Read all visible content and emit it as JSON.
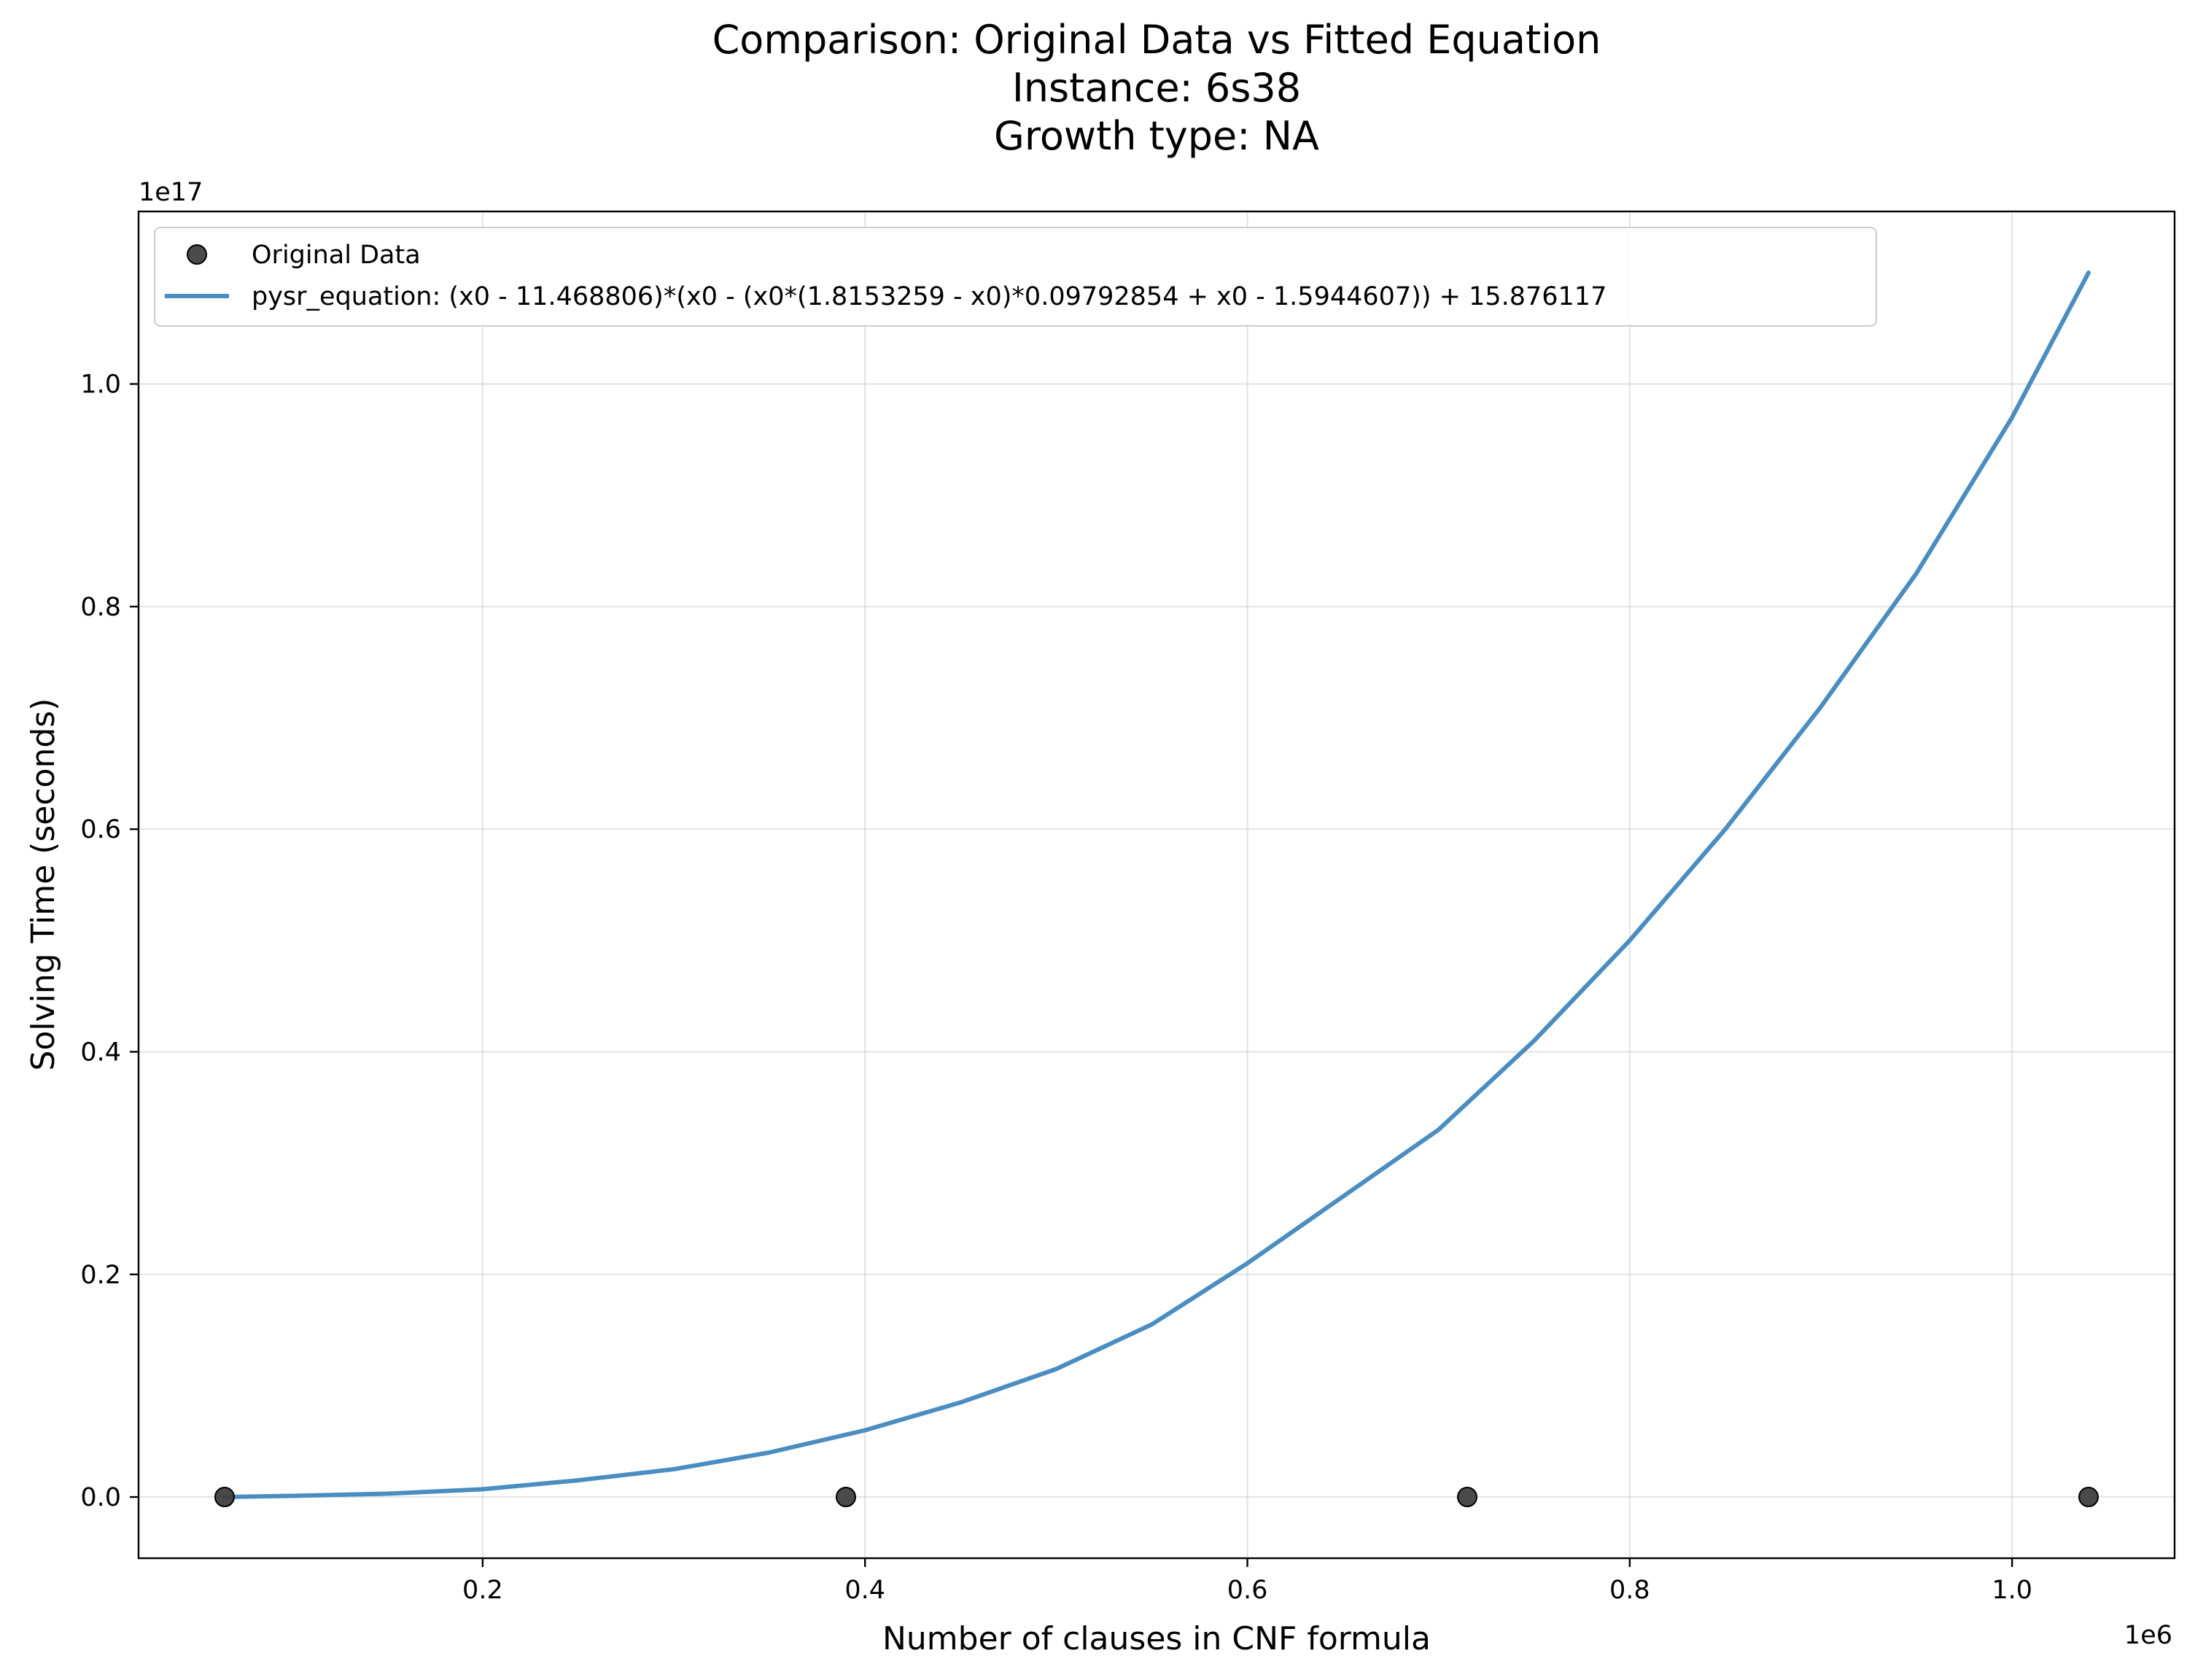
{
  "chart_data": {
    "type": "scatter",
    "title_lines": [
      "Comparison: Original Data vs Fitted Equation",
      "Instance: 6s38",
      "Growth type: NA"
    ],
    "xlabel": "Number of clauses in CNF formula",
    "ylabel": "Solving Time (seconds)",
    "x_scale_label": "1e6",
    "y_scale_label": "1e17",
    "xlim": [
      0.02,
      1.085
    ],
    "ylim": [
      -0.055,
      1.155
    ],
    "x_ticks": [
      0.2,
      0.4,
      0.6,
      0.8,
      1.0
    ],
    "x_tick_labels": [
      "0.2",
      "0.4",
      "0.6",
      "0.8",
      "1.0"
    ],
    "y_ticks": [
      0.0,
      0.2,
      0.4,
      0.6,
      0.8,
      1.0
    ],
    "y_tick_labels": [
      "0.0",
      "0.2",
      "0.4",
      "0.6",
      "0.8",
      "1.0"
    ],
    "grid": true,
    "legend_position": "top-left",
    "series": [
      {
        "name": "Original Data",
        "kind": "scatter",
        "color": "#404040",
        "x": [
          0.065,
          0.39,
          0.715,
          1.04
        ],
        "y": [
          0.0,
          0.0,
          0.0,
          0.0
        ]
      },
      {
        "name": "pysr_equation: (x0 - 11.468806)*(x0 - (x0*(1.8153259 - x0)*0.09792854 + x0 - 1.5944607)) + 15.876117",
        "kind": "line",
        "color": "#4a8dc0",
        "x": [
          0.065,
          0.1,
          0.15,
          0.2,
          0.25,
          0.3,
          0.35,
          0.4,
          0.45,
          0.5,
          0.55,
          0.6,
          0.65,
          0.7,
          0.75,
          0.8,
          0.85,
          0.9,
          0.95,
          1.0,
          1.04
        ],
        "y": [
          0.0,
          0.001,
          0.003,
          0.007,
          0.015,
          0.025,
          0.04,
          0.06,
          0.085,
          0.115,
          0.155,
          0.21,
          0.27,
          0.33,
          0.41,
          0.5,
          0.6,
          0.71,
          0.83,
          0.97,
          1.1
        ]
      }
    ]
  }
}
